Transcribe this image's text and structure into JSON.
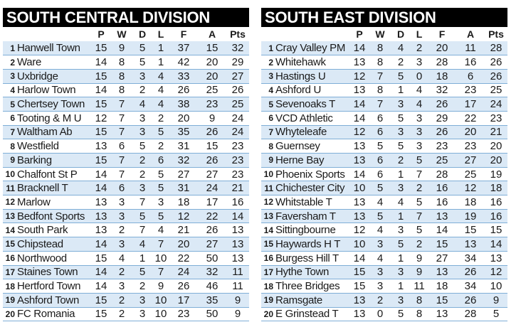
{
  "headers": {
    "p": "P",
    "w": "W",
    "d": "D",
    "l": "L",
    "f": "F",
    "a": "A",
    "pts": "Pts"
  },
  "divisions": [
    {
      "title": "SOUTH CENTRAL DIVISION",
      "rows": [
        {
          "pos": "1",
          "team": "Hanwell Town",
          "p": "15",
          "w": "9",
          "d": "5",
          "l": "1",
          "f": "37",
          "a": "15",
          "pts": "32"
        },
        {
          "pos": "2",
          "team": "Ware",
          "p": "14",
          "w": "8",
          "d": "5",
          "l": "1",
          "f": "42",
          "a": "20",
          "pts": "29"
        },
        {
          "pos": "3",
          "team": "Uxbridge",
          "p": "15",
          "w": "8",
          "d": "3",
          "l": "4",
          "f": "33",
          "a": "20",
          "pts": "27"
        },
        {
          "pos": "4",
          "team": "Harlow Town",
          "p": "14",
          "w": "8",
          "d": "2",
          "l": "4",
          "f": "26",
          "a": "25",
          "pts": "26"
        },
        {
          "pos": "5",
          "team": "Chertsey Town",
          "p": "15",
          "w": "7",
          "d": "4",
          "l": "4",
          "f": "38",
          "a": "23",
          "pts": "25"
        },
        {
          "pos": "6",
          "team": "Tooting & M U",
          "p": "12",
          "w": "7",
          "d": "3",
          "l": "2",
          "f": "20",
          "a": "9",
          "pts": "24"
        },
        {
          "pos": "7",
          "team": "Waltham Ab",
          "p": "15",
          "w": "7",
          "d": "3",
          "l": "5",
          "f": "35",
          "a": "26",
          "pts": "24"
        },
        {
          "pos": "8",
          "team": "Westfield",
          "p": "13",
          "w": "6",
          "d": "5",
          "l": "2",
          "f": "31",
          "a": "15",
          "pts": "23"
        },
        {
          "pos": "9",
          "team": "Barking",
          "p": "15",
          "w": "7",
          "d": "2",
          "l": "6",
          "f": "32",
          "a": "26",
          "pts": "23"
        },
        {
          "pos": "10",
          "team": "Chalfont St P",
          "p": "14",
          "w": "7",
          "d": "2",
          "l": "5",
          "f": "27",
          "a": "27",
          "pts": "23"
        },
        {
          "pos": "11",
          "team": "Bracknell T",
          "p": "14",
          "w": "6",
          "d": "3",
          "l": "5",
          "f": "31",
          "a": "24",
          "pts": "21"
        },
        {
          "pos": "12",
          "team": "Marlow",
          "p": "13",
          "w": "3",
          "d": "7",
          "l": "3",
          "f": "18",
          "a": "17",
          "pts": "16"
        },
        {
          "pos": "13",
          "team": "Bedfont Sports",
          "p": "13",
          "w": "3",
          "d": "5",
          "l": "5",
          "f": "12",
          "a": "22",
          "pts": "14"
        },
        {
          "pos": "14",
          "team": "South Park",
          "p": "13",
          "w": "2",
          "d": "7",
          "l": "4",
          "f": "21",
          "a": "26",
          "pts": "13"
        },
        {
          "pos": "15",
          "team": "Chipstead",
          "p": "14",
          "w": "3",
          "d": "4",
          "l": "7",
          "f": "20",
          "a": "27",
          "pts": "13"
        },
        {
          "pos": "16",
          "team": "Northwood",
          "p": "15",
          "w": "4",
          "d": "1",
          "l": "10",
          "f": "22",
          "a": "50",
          "pts": "13"
        },
        {
          "pos": "17",
          "team": "Staines Town",
          "p": "14",
          "w": "2",
          "d": "5",
          "l": "7",
          "f": "24",
          "a": "32",
          "pts": "11"
        },
        {
          "pos": "18",
          "team": "Hertford Town",
          "p": "14",
          "w": "3",
          "d": "2",
          "l": "9",
          "f": "26",
          "a": "46",
          "pts": "11"
        },
        {
          "pos": "19",
          "team": "Ashford Town",
          "p": "15",
          "w": "2",
          "d": "3",
          "l": "10",
          "f": "17",
          "a": "35",
          "pts": "9"
        },
        {
          "pos": "20",
          "team": "FC Romania",
          "p": "15",
          "w": "2",
          "d": "3",
          "l": "10",
          "f": "23",
          "a": "50",
          "pts": "9"
        }
      ]
    },
    {
      "title": "SOUTH EAST DIVISION",
      "rows": [
        {
          "pos": "1",
          "team": "Cray Valley PM",
          "p": "14",
          "w": "8",
          "d": "4",
          "l": "2",
          "f": "20",
          "a": "11",
          "pts": "28"
        },
        {
          "pos": "2",
          "team": "Whitehawk",
          "p": "13",
          "w": "8",
          "d": "2",
          "l": "3",
          "f": "28",
          "a": "16",
          "pts": "26"
        },
        {
          "pos": "3",
          "team": "Hastings U",
          "p": "12",
          "w": "7",
          "d": "5",
          "l": "0",
          "f": "18",
          "a": "6",
          "pts": "26"
        },
        {
          "pos": "4",
          "team": "Ashford U",
          "p": "13",
          "w": "8",
          "d": "1",
          "l": "4",
          "f": "32",
          "a": "23",
          "pts": "25"
        },
        {
          "pos": "5",
          "team": "Sevenoaks T",
          "p": "14",
          "w": "7",
          "d": "3",
          "l": "4",
          "f": "26",
          "a": "17",
          "pts": "24"
        },
        {
          "pos": "6",
          "team": "VCD Athletic",
          "p": "14",
          "w": "6",
          "d": "5",
          "l": "3",
          "f": "29",
          "a": "22",
          "pts": "23"
        },
        {
          "pos": "7",
          "team": "Whyteleafe",
          "p": "12",
          "w": "6",
          "d": "3",
          "l": "3",
          "f": "26",
          "a": "20",
          "pts": "21"
        },
        {
          "pos": "8",
          "team": "Guernsey",
          "p": "13",
          "w": "5",
          "d": "5",
          "l": "3",
          "f": "23",
          "a": "23",
          "pts": "20"
        },
        {
          "pos": "9",
          "team": "Herne Bay",
          "p": "13",
          "w": "6",
          "d": "2",
          "l": "5",
          "f": "25",
          "a": "27",
          "pts": "20"
        },
        {
          "pos": "10",
          "team": "Phoenix Sports",
          "p": "14",
          "w": "6",
          "d": "1",
          "l": "7",
          "f": "28",
          "a": "25",
          "pts": "19"
        },
        {
          "pos": "11",
          "team": "Chichester City",
          "p": "10",
          "w": "5",
          "d": "3",
          "l": "2",
          "f": "16",
          "a": "12",
          "pts": "18"
        },
        {
          "pos": "12",
          "team": "Whitstable T",
          "p": "13",
          "w": "4",
          "d": "4",
          "l": "5",
          "f": "16",
          "a": "18",
          "pts": "16"
        },
        {
          "pos": "13",
          "team": "Faversham T",
          "p": "13",
          "w": "5",
          "d": "1",
          "l": "7",
          "f": "13",
          "a": "19",
          "pts": "16"
        },
        {
          "pos": "14",
          "team": "Sittingbourne",
          "p": "12",
          "w": "4",
          "d": "3",
          "l": "5",
          "f": "14",
          "a": "15",
          "pts": "15"
        },
        {
          "pos": "15",
          "team": "Haywards H T",
          "p": "10",
          "w": "3",
          "d": "5",
          "l": "2",
          "f": "15",
          "a": "13",
          "pts": "14"
        },
        {
          "pos": "16",
          "team": "Burgess Hill T",
          "p": "14",
          "w": "4",
          "d": "1",
          "l": "9",
          "f": "27",
          "a": "34",
          "pts": "13"
        },
        {
          "pos": "17",
          "team": "Hythe Town",
          "p": "15",
          "w": "3",
          "d": "3",
          "l": "9",
          "f": "13",
          "a": "26",
          "pts": "12"
        },
        {
          "pos": "18",
          "team": "Three Bridges",
          "p": "15",
          "w": "3",
          "d": "1",
          "l": "11",
          "f": "18",
          "a": "34",
          "pts": "10"
        },
        {
          "pos": "19",
          "team": "Ramsgate",
          "p": "13",
          "w": "2",
          "d": "3",
          "l": "8",
          "f": "15",
          "a": "26",
          "pts": "9"
        },
        {
          "pos": "20",
          "team": "E Grinstead T",
          "p": "13",
          "w": "0",
          "d": "5",
          "l": "8",
          "f": "13",
          "a": "28",
          "pts": "5"
        }
      ]
    }
  ]
}
